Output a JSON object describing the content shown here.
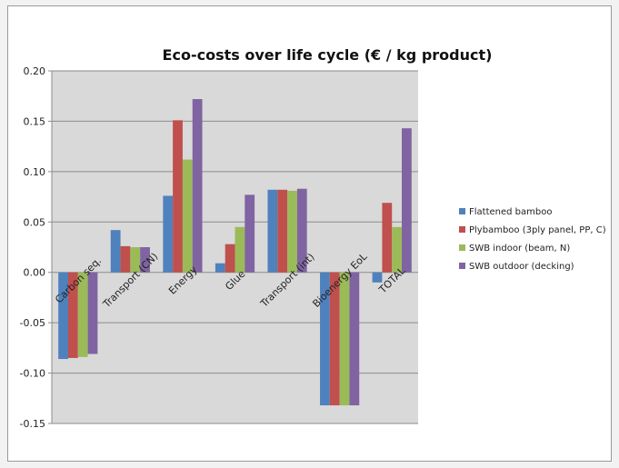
{
  "chart_data": {
    "type": "bar",
    "title": "Eco-costs over life cycle (€ / kg product)",
    "xlabel": "",
    "ylabel": "",
    "ylim": [
      -0.15,
      0.2
    ],
    "yticks": [
      "0.20",
      "0.15",
      "0.10",
      "0.05",
      "0.00",
      "-0.05",
      "-0.10",
      "-0.15"
    ],
    "categories": [
      "Carbon seq.",
      "Transport (CN)",
      "Energy",
      "Glue",
      "Transport (int)",
      "Bioenergy EoL",
      "TOTAL"
    ],
    "series": [
      {
        "name": "Flattened bamboo",
        "color": "#4f81bd",
        "values": [
          -0.086,
          0.042,
          0.076,
          0.009,
          0.082,
          -0.132,
          -0.01
        ]
      },
      {
        "name": "Plybamboo (3ply panel, PP, C)",
        "color": "#c0504d",
        "values": [
          -0.085,
          0.026,
          0.151,
          0.028,
          0.082,
          -0.132,
          0.069
        ]
      },
      {
        "name": "SWB indoor (beam, N)",
        "color": "#9bbb59",
        "values": [
          -0.084,
          0.025,
          0.112,
          0.045,
          0.081,
          -0.132,
          0.045
        ]
      },
      {
        "name": "SWB outdoor (decking)",
        "color": "#8064a2",
        "values": [
          -0.081,
          0.025,
          0.172,
          0.077,
          0.083,
          -0.132,
          0.143
        ]
      }
    ],
    "grid": true,
    "plot_background": "#d9d9d9",
    "legend_position": "right"
  }
}
